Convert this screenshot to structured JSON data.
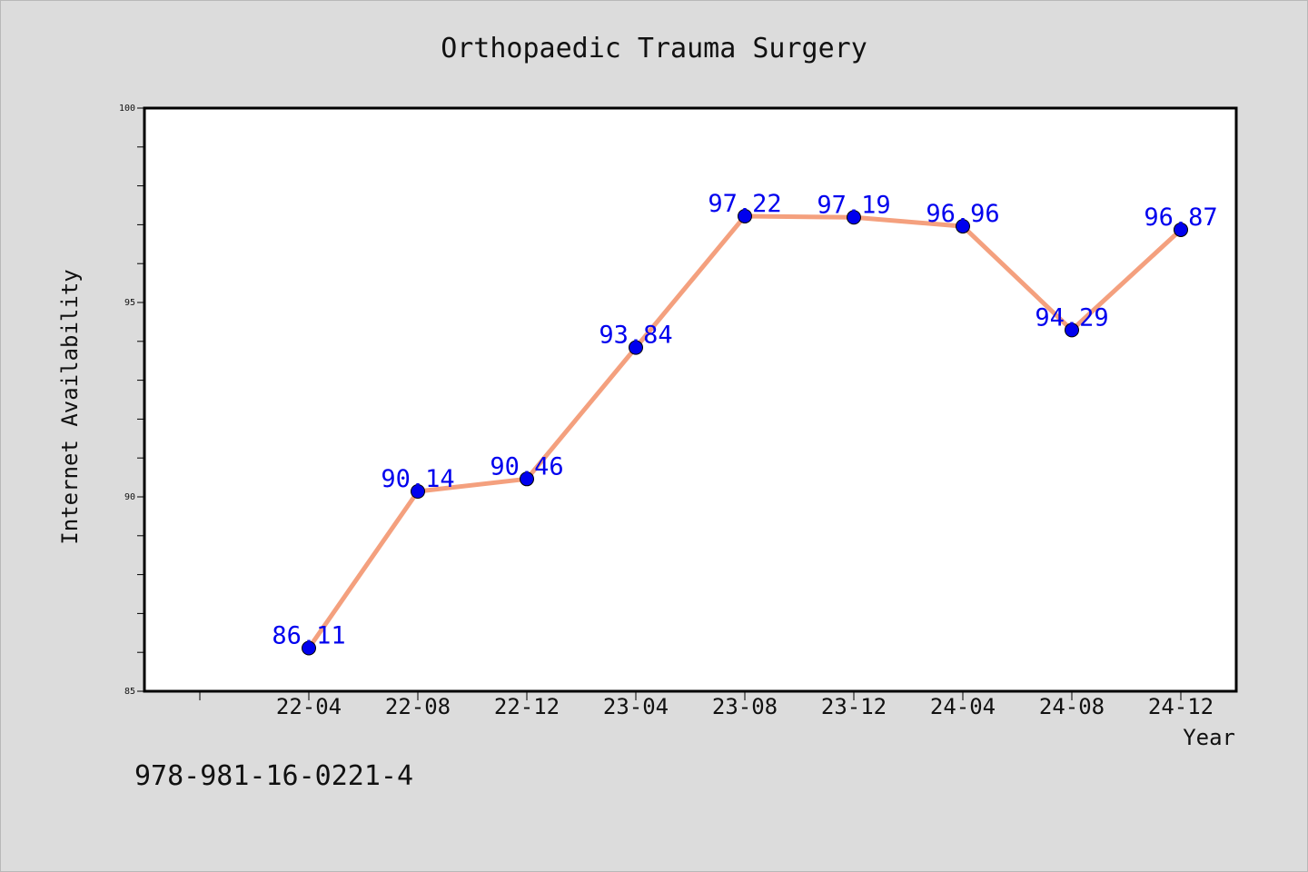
{
  "chart_data": {
    "type": "line",
    "title": "Orthopaedic Trauma Surgery",
    "xlabel": "Year",
    "ylabel": "Internet Availability",
    "categories": [
      "22-04",
      "22-08",
      "22-12",
      "23-04",
      "23-08",
      "23-12",
      "24-04",
      "24-08",
      "24-12"
    ],
    "series": [
      {
        "values": [
          86.11,
          90.14,
          90.46,
          93.84,
          97.22,
          97.19,
          96.96,
          94.29,
          96.87
        ]
      }
    ],
    "ylim": [
      85,
      100
    ],
    "yticks": [
      85,
      90,
      95,
      100
    ],
    "data_labels": [
      "86.11",
      "90.14",
      "90.46",
      "93.84",
      "97.22",
      "97.19",
      "96.96",
      "94.29",
      "96.87"
    ],
    "grid": false,
    "legend": "none",
    "colors": {
      "line": "#f4a07e",
      "marker": "#0000ee",
      "label": "#0000ee",
      "background": "#dcdcdc",
      "plot_background": "#ffffff"
    }
  },
  "footer": {
    "text": "978-981-16-0221-4"
  }
}
